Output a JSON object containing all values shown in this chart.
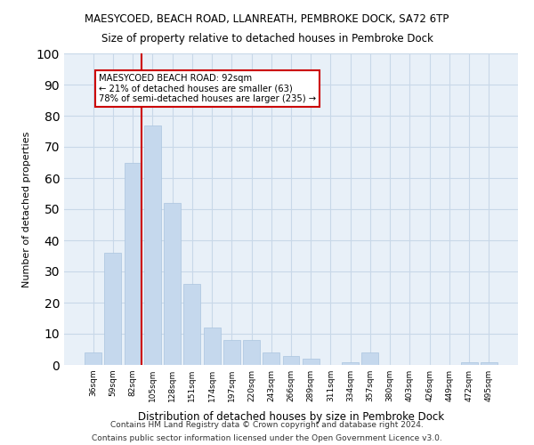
{
  "title": "MAESYCOED, BEACH ROAD, LLANREATH, PEMBROKE DOCK, SA72 6TP",
  "subtitle": "Size of property relative to detached houses in Pembroke Dock",
  "xlabel": "Distribution of detached houses by size in Pembroke Dock",
  "ylabel": "Number of detached properties",
  "categories": [
    "36sqm",
    "59sqm",
    "82sqm",
    "105sqm",
    "128sqm",
    "151sqm",
    "174sqm",
    "197sqm",
    "220sqm",
    "243sqm",
    "266sqm",
    "289sqm",
    "311sqm",
    "334sqm",
    "357sqm",
    "380sqm",
    "403sqm",
    "426sqm",
    "449sqm",
    "472sqm",
    "495sqm"
  ],
  "values": [
    4,
    36,
    65,
    77,
    52,
    26,
    12,
    8,
    8,
    4,
    3,
    2,
    0,
    1,
    4,
    0,
    0,
    0,
    0,
    1,
    1
  ],
  "bar_color": "#c5d8ed",
  "bar_edge_color": "#aac4df",
  "marker_line_color": "#cc0000",
  "annotation_box_text": "MAESYCOED BEACH ROAD: 92sqm\n← 21% of detached houses are smaller (63)\n78% of semi-detached houses are larger (235) →",
  "annotation_box_color": "#cc0000",
  "ylim": [
    0,
    100
  ],
  "yticks": [
    0,
    10,
    20,
    30,
    40,
    50,
    60,
    70,
    80,
    90,
    100
  ],
  "grid_color": "#c8d8e8",
  "bg_color": "#e8f0f8",
  "footer_line1": "Contains HM Land Registry data © Crown copyright and database right 2024.",
  "footer_line2": "Contains public sector information licensed under the Open Government Licence v3.0."
}
